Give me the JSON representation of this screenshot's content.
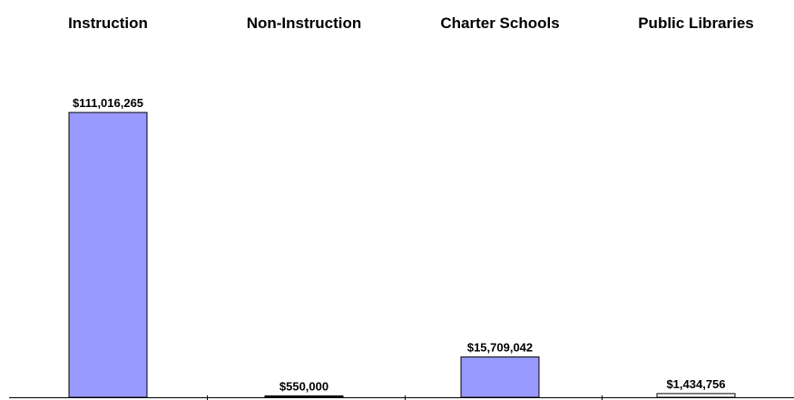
{
  "chart_data": {
    "type": "bar",
    "categories": [
      "Instruction",
      "Non-Instruction",
      "Charter Schools",
      "Public Libraries"
    ],
    "values": [
      111016265,
      550000,
      15709042,
      1434756
    ],
    "value_labels": [
      "$111,016,265",
      "$550,000",
      "$15,709,042",
      "$1,434,756"
    ],
    "colors": [
      "#9999ff",
      "#333333",
      "#9999ff",
      "#ffffff"
    ]
  }
}
